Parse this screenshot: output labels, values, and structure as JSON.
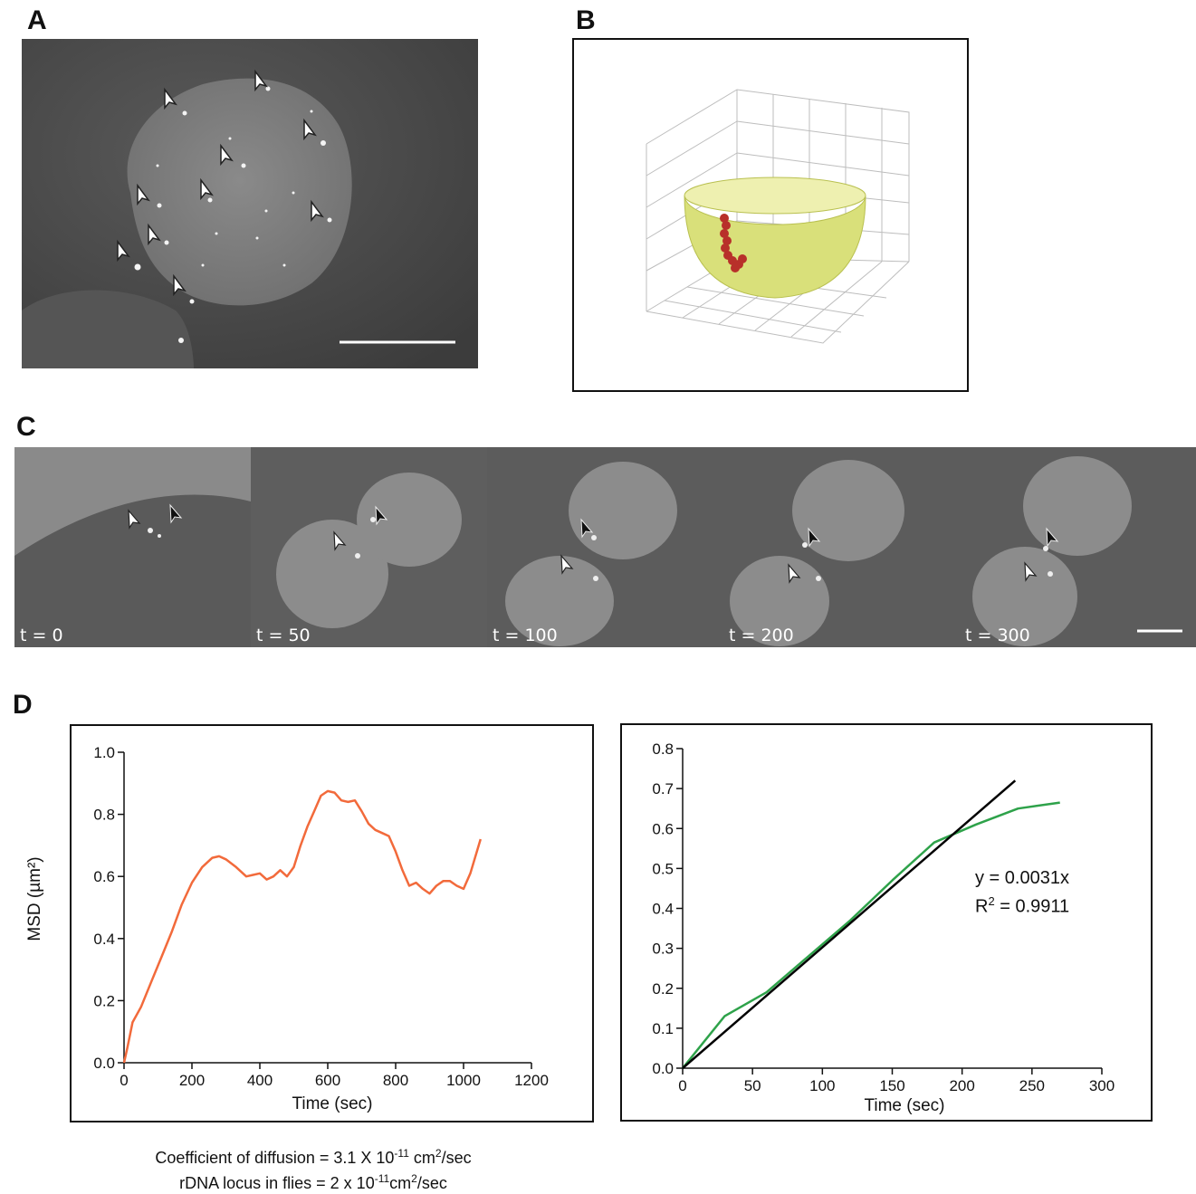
{
  "panels": {
    "a": "A",
    "b": "B",
    "c": "C",
    "d": "D"
  },
  "panel_c": {
    "frames": [
      {
        "label": "t = 0"
      },
      {
        "label": "t = 50"
      },
      {
        "label": "t = 100"
      },
      {
        "label": "t = 200"
      },
      {
        "label": "t = 300"
      }
    ]
  },
  "colors": {
    "msd_curve": "#f26a3b",
    "fit_line": "#000000",
    "green_curve": "#2ea24a",
    "hemisphere": "#d9e07a",
    "locus": "#b8302a"
  },
  "fit": {
    "equation": "y = 0.0031x",
    "r2_label": "R",
    "r2_sup": "2",
    "r2_value": " = 0.9911"
  },
  "caption": {
    "line1_a": "Coefficient of diffusion = 3.1 X 10",
    "line1_sup": "-11",
    "line1_b": " cm",
    "line1_sup2": "2",
    "line1_c": "/sec",
    "line2_a": "rDNA locus in flies =  2 x 10",
    "line2_sup": "-11",
    "line2_b": "cm",
    "line2_sup2": "2",
    "line2_c": "/sec"
  },
  "chart_data": [
    {
      "type": "line",
      "xlabel": "Time (sec)",
      "ylabel": "MSD (µm²)",
      "xlim": [
        0,
        1200
      ],
      "ylim": [
        0,
        1.0
      ],
      "xticks": [
        "0",
        "200",
        "400",
        "600",
        "800",
        "1000",
        "1200"
      ],
      "yticks": [
        "0.0",
        "0.2",
        "0.4",
        "0.6",
        "0.8",
        "1.0"
      ],
      "grid": false,
      "series": [
        {
          "x": [
            0,
            10,
            25,
            50,
            80,
            110,
            140,
            170,
            200,
            230,
            260,
            280,
            300,
            330,
            360,
            380,
            400,
            420,
            440,
            460,
            480,
            500,
            520,
            540,
            560,
            580,
            600,
            620,
            640,
            660,
            680,
            700,
            720,
            740,
            760,
            780,
            800,
            820,
            840,
            860,
            880,
            900,
            920,
            940,
            960,
            980,
            1000,
            1020,
            1050
          ],
          "y": [
            0.0,
            0.05,
            0.13,
            0.18,
            0.26,
            0.34,
            0.42,
            0.51,
            0.58,
            0.63,
            0.66,
            0.665,
            0.655,
            0.63,
            0.6,
            0.605,
            0.61,
            0.59,
            0.6,
            0.62,
            0.6,
            0.63,
            0.7,
            0.76,
            0.81,
            0.86,
            0.875,
            0.87,
            0.845,
            0.84,
            0.845,
            0.81,
            0.77,
            0.75,
            0.74,
            0.73,
            0.68,
            0.62,
            0.57,
            0.58,
            0.56,
            0.545,
            0.57,
            0.585,
            0.585,
            0.57,
            0.56,
            0.61,
            0.72
          ]
        }
      ]
    },
    {
      "type": "line",
      "xlabel": "Time (sec)",
      "ylabel": "",
      "xlim": [
        0,
        300
      ],
      "ylim": [
        0,
        0.8
      ],
      "xticks": [
        "0",
        "50",
        "100",
        "150",
        "200",
        "250",
        "300"
      ],
      "yticks": [
        "0.0",
        "0.1",
        "0.2",
        "0.3",
        "0.4",
        "0.5",
        "0.6",
        "0.7",
        "0.8"
      ],
      "grid": false,
      "series": [
        {
          "x": [
            0,
            30,
            60,
            90,
            120,
            150,
            180,
            210,
            240,
            270
          ],
          "y": [
            0,
            0.13,
            0.19,
            0.28,
            0.37,
            0.47,
            0.565,
            0.61,
            0.65,
            0.665
          ]
        },
        {
          "x": [
            0,
            238
          ],
          "y": [
            0,
            0.72
          ]
        }
      ]
    }
  ]
}
